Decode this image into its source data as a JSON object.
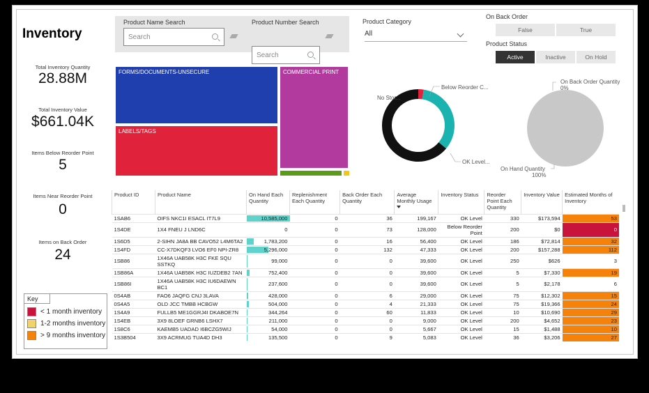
{
  "title": "Inventory",
  "kpis": [
    {
      "label": "Total Inventory Quantity",
      "value": "28.88M"
    },
    {
      "label": "Total Inventory Value",
      "value": "$661.04K"
    },
    {
      "label": "Items Below Reorder Point",
      "value": "5"
    },
    {
      "label": "Items Near Reorder Point",
      "value": "0"
    },
    {
      "label": "Items on Back Order",
      "value": "24"
    }
  ],
  "filters": {
    "name_label": "Product Name Search",
    "name_placeholder": "Search",
    "number_label": "Product Number Search",
    "number_placeholder": "Search",
    "category_label": "Product Category",
    "category_value": "All",
    "backorder_label": "On Back Order",
    "backorder_options": [
      "False",
      "True"
    ],
    "status_label": "Product Status",
    "status_options": [
      "Active",
      "Inactive",
      "On Hold"
    ],
    "status_selected": "Active"
  },
  "treemap": [
    {
      "label": "FORMS/DOCUMENTS-UNSECURE",
      "color": "#1f3fae"
    },
    {
      "label": "COMMERCIAL PRINT",
      "color": "#b23a9e"
    },
    {
      "label": "LABELS/TAGS",
      "color": "#e0233a"
    },
    {
      "label": "",
      "color": "#5c9b1a"
    },
    {
      "label": "",
      "color": "#f5c518"
    }
  ],
  "donut": {
    "labels": {
      "below": "Below Reorder C...",
      "nostock": "No Stor...",
      "ok": "OK Level..."
    },
    "colors": {
      "below": "#e0233a",
      "nostock": "#111111",
      "ok": "#1bb3b0"
    }
  },
  "pie": {
    "label_top": "On Back Order Quantity",
    "label_top_pct": "0%",
    "label_bottom": "On Hand Quantity",
    "label_bottom_pct": "100%",
    "color": "#c8c8c8"
  },
  "table": {
    "headers": [
      "Product ID",
      "Product Name",
      "On Hand Each Quantity",
      "Replenishment Each Quantity",
      "Back Order Each Quantity",
      "Average Monthly Usage",
      "Inventory Status",
      "Reorder Point Each Quantity",
      "Inventory Value",
      "Estimated Months of Inventory"
    ],
    "rows": [
      {
        "id": "1SAB6",
        "name": "OIFS NKC1I ESACL IT7L9",
        "onhand": "10,585,000",
        "bar": 1.0,
        "rep": "0",
        "back": "36",
        "usage": "199,167",
        "status": "OK Level",
        "reorder": "330",
        "value": "$173,594",
        "months": "53",
        "mc": "orange"
      },
      {
        "id": "1S4DE",
        "name": "1X4 FNEU J LND6C",
        "onhand": "0",
        "bar": 0,
        "rep": "0",
        "back": "73",
        "usage": "128,000",
        "status": "Below Reorder Point",
        "reorder": "200",
        "value": "$0",
        "months": "0",
        "mc": "red"
      },
      {
        "id": "1S6D5",
        "name": "2-SIHN JA8A BB CAVO52 L4M6TA2",
        "onhand": "1,783,200",
        "bar": 0.17,
        "rep": "0",
        "back": "16",
        "usage": "56,400",
        "status": "OK Level",
        "reorder": "186",
        "value": "$72,814",
        "months": "32",
        "mc": "orange"
      },
      {
        "id": "1S4FD",
        "name": "CC-X7DKQF3 LVO6 EF0 NPI-ZR8",
        "onhand": "5,296,000",
        "bar": 0.5,
        "rep": "0",
        "back": "132",
        "usage": "47,333",
        "status": "OK Level",
        "reorder": "200",
        "value": "$157,288",
        "months": "112",
        "mc": "orange"
      },
      {
        "id": "1SB86",
        "name": "1X46A UAB58K H3C FKE SQU SSTKQ",
        "onhand": "99,000",
        "bar": 0.01,
        "rep": "0",
        "back": "0",
        "usage": "39,600",
        "status": "OK Level",
        "reorder": "250",
        "value": "$626",
        "months": "3",
        "mc": ""
      },
      {
        "id": "1SB86A",
        "name": "1X46A UAB58K H3C IUZDEB2 7AN",
        "onhand": "752,400",
        "bar": 0.07,
        "rep": "0",
        "back": "0",
        "usage": "39,600",
        "status": "OK Level",
        "reorder": "5",
        "value": "$7,330",
        "months": "19",
        "mc": "orange"
      },
      {
        "id": "1SB86I",
        "name": "1X46A UAB58K H3C IU6DAEWN BC1",
        "onhand": "237,600",
        "bar": 0.02,
        "rep": "0",
        "back": "0",
        "usage": "39,600",
        "status": "OK Level",
        "reorder": "5",
        "value": "$2,178",
        "months": "6",
        "mc": ""
      },
      {
        "id": "0S4AB",
        "name": "FAO6 JAQFG CNJ 3LAVA",
        "onhand": "428,000",
        "bar": 0.04,
        "rep": "0",
        "back": "6",
        "usage": "29,000",
        "status": "OK Level",
        "reorder": "75",
        "value": "$12,302",
        "months": "15",
        "mc": "orange"
      },
      {
        "id": "0S4A5",
        "name": "OLD JCC TMBB HCBGW",
        "onhand": "504,000",
        "bar": 0.05,
        "rep": "0",
        "back": "4",
        "usage": "21,333",
        "status": "OK Level",
        "reorder": "75",
        "value": "$19,366",
        "months": "24",
        "mc": "orange"
      },
      {
        "id": "1S4A9",
        "name": "FULLB5 ME1GGRJ4I DKABOE7N",
        "onhand": "344,264",
        "bar": 0.03,
        "rep": "0",
        "back": "60",
        "usage": "11,833",
        "status": "OK Level",
        "reorder": "10",
        "value": "$10,690",
        "months": "29",
        "mc": "orange"
      },
      {
        "id": "1S4EB",
        "name": "3X9 8LOEF GRNB6 LSHX7",
        "onhand": "211,000",
        "bar": 0.02,
        "rep": "0",
        "back": "0",
        "usage": "9,000",
        "status": "OK Level",
        "reorder": "200",
        "value": "$4,652",
        "months": "23",
        "mc": "orange"
      },
      {
        "id": "1S8C6",
        "name": "KAEMB5 UADAD I6BCZG5WIJ",
        "onhand": "54,000",
        "bar": 0.005,
        "rep": "0",
        "back": "0",
        "usage": "5,667",
        "status": "OK Level",
        "reorder": "15",
        "value": "$1,488",
        "months": "10",
        "mc": "orange"
      },
      {
        "id": "1S3B504",
        "name": "3X9 ACRMUG TUA4D DH3",
        "onhand": "135,500",
        "bar": 0.01,
        "rep": "0",
        "back": "9",
        "usage": "5,083",
        "status": "OK Level",
        "reorder": "36",
        "value": "$3,206",
        "months": "27",
        "mc": "orange"
      }
    ]
  },
  "key": {
    "title": "Key",
    "items": [
      {
        "label": "< 1 month inventory",
        "color": "#c8143c"
      },
      {
        "label": "1-2 months inventory",
        "color": "#f2d36b"
      },
      {
        "label": "> 9 months inventory",
        "color": "#f5820a"
      }
    ]
  }
}
